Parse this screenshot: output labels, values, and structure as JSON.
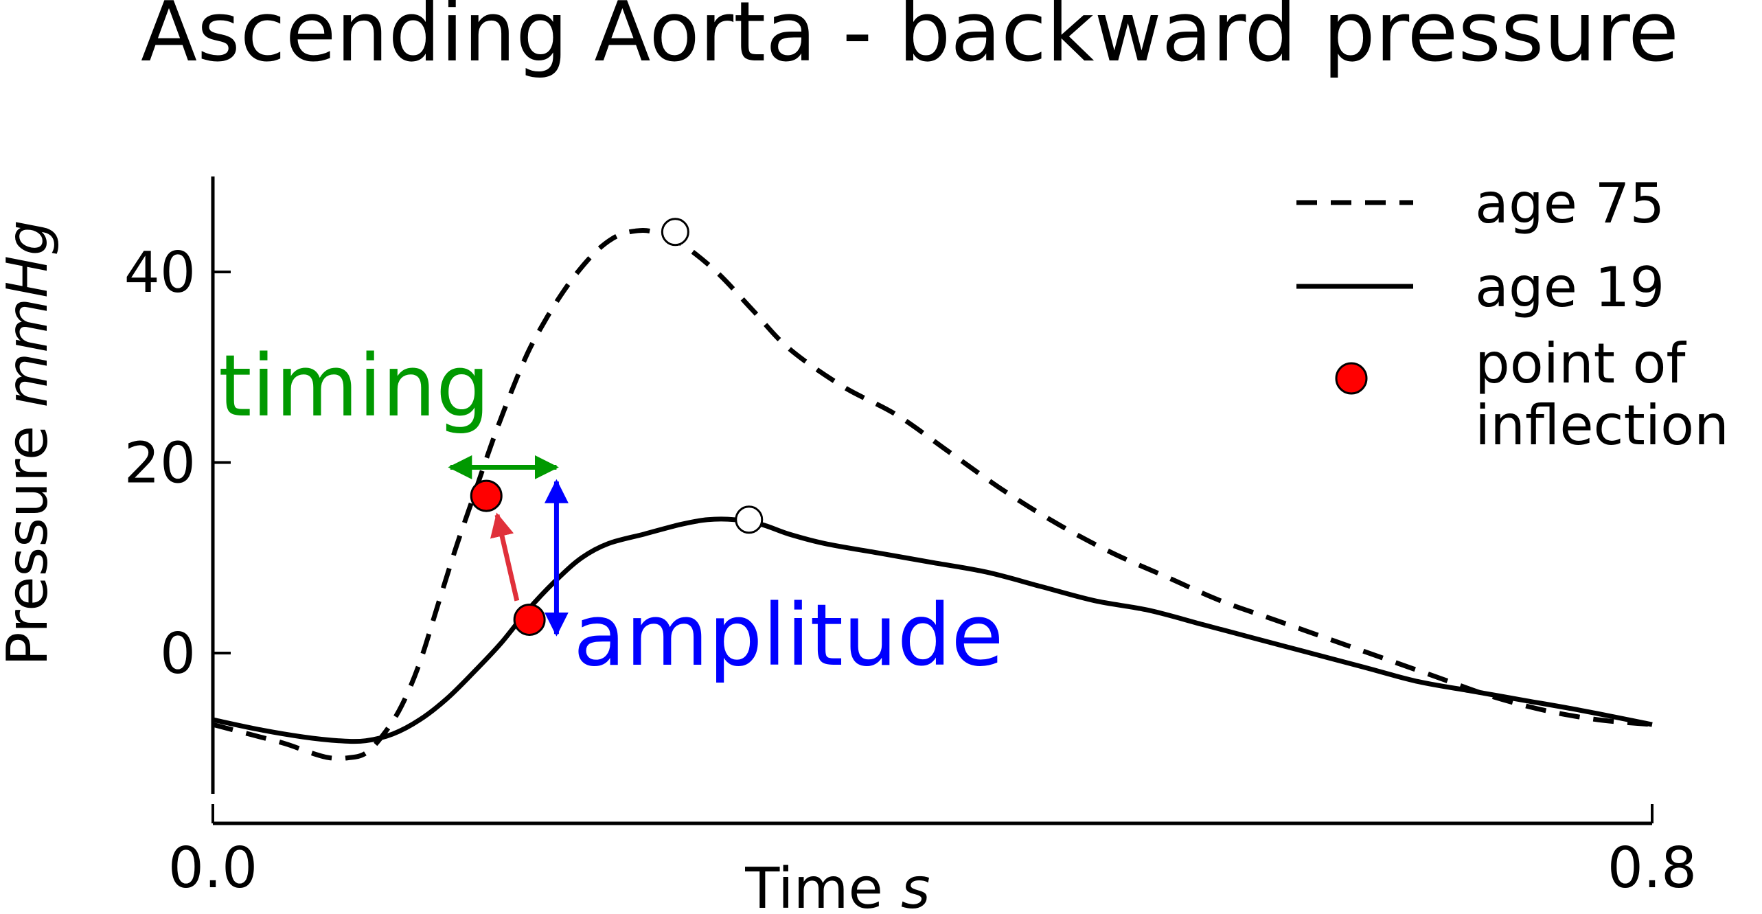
{
  "chart_data": {
    "type": "line",
    "title": "Ascending Aorta - backward pressure",
    "xlabel": {
      "text": "Time ",
      "unit": "s"
    },
    "ylabel": {
      "text": "Pressure ",
      "unit": "mmHg"
    },
    "xlim": [
      0.0,
      0.8
    ],
    "ylim": [
      -15,
      50
    ],
    "xticks": [
      {
        "value": 0.0,
        "label": "0.0"
      },
      {
        "value": 0.8,
        "label": "0.8"
      }
    ],
    "yticks": [
      {
        "value": 0,
        "label": "0"
      },
      {
        "value": 20,
        "label": "20"
      },
      {
        "value": 40,
        "label": "40"
      }
    ],
    "grid": false,
    "legend_position": "top-right",
    "series": [
      {
        "name": "age 75",
        "style": "dashed",
        "color": "#000000",
        "points": [
          [
            0.0,
            -7.5
          ],
          [
            0.02,
            -8.5
          ],
          [
            0.04,
            -9.5
          ],
          [
            0.055,
            -10.5
          ],
          [
            0.065,
            -11.0
          ],
          [
            0.075,
            -11.0
          ],
          [
            0.085,
            -10.5
          ],
          [
            0.095,
            -8.5
          ],
          [
            0.105,
            -5.5
          ],
          [
            0.115,
            -1.0
          ],
          [
            0.125,
            5.0
          ],
          [
            0.135,
            11.0
          ],
          [
            0.145,
            16.5
          ],
          [
            0.155,
            22.0
          ],
          [
            0.165,
            27.0
          ],
          [
            0.175,
            31.5
          ],
          [
            0.185,
            35.0
          ],
          [
            0.195,
            38.0
          ],
          [
            0.205,
            40.5
          ],
          [
            0.215,
            42.5
          ],
          [
            0.225,
            43.8
          ],
          [
            0.235,
            44.3
          ],
          [
            0.245,
            44.2
          ],
          [
            0.26,
            43.0
          ],
          [
            0.28,
            40.0
          ],
          [
            0.3,
            36.0
          ],
          [
            0.32,
            32.0
          ],
          [
            0.35,
            28.0
          ],
          [
            0.38,
            25.0
          ],
          [
            0.41,
            21.0
          ],
          [
            0.44,
            17.0
          ],
          [
            0.47,
            13.5
          ],
          [
            0.5,
            10.5
          ],
          [
            0.53,
            8.0
          ],
          [
            0.56,
            5.5
          ],
          [
            0.59,
            3.5
          ],
          [
            0.62,
            1.5
          ],
          [
            0.65,
            -0.5
          ],
          [
            0.68,
            -2.5
          ],
          [
            0.71,
            -4.5
          ],
          [
            0.74,
            -6.0
          ],
          [
            0.77,
            -7.0
          ],
          [
            0.8,
            -7.5
          ]
        ]
      },
      {
        "name": "age 19",
        "style": "solid",
        "color": "#000000",
        "points": [
          [
            0.0,
            -7.0
          ],
          [
            0.025,
            -8.0
          ],
          [
            0.05,
            -8.8
          ],
          [
            0.07,
            -9.2
          ],
          [
            0.085,
            -9.2
          ],
          [
            0.1,
            -8.5
          ],
          [
            0.115,
            -7.0
          ],
          [
            0.13,
            -4.8
          ],
          [
            0.145,
            -2.0
          ],
          [
            0.16,
            1.0
          ],
          [
            0.175,
            4.5
          ],
          [
            0.19,
            7.5
          ],
          [
            0.205,
            10.0
          ],
          [
            0.22,
            11.5
          ],
          [
            0.24,
            12.5
          ],
          [
            0.26,
            13.5
          ],
          [
            0.275,
            14.0
          ],
          [
            0.29,
            14.0
          ],
          [
            0.305,
            13.5
          ],
          [
            0.32,
            12.5
          ],
          [
            0.34,
            11.5
          ],
          [
            0.37,
            10.5
          ],
          [
            0.4,
            9.5
          ],
          [
            0.43,
            8.5
          ],
          [
            0.46,
            7.0
          ],
          [
            0.49,
            5.5
          ],
          [
            0.52,
            4.5
          ],
          [
            0.55,
            3.0
          ],
          [
            0.58,
            1.5
          ],
          [
            0.61,
            0.0
          ],
          [
            0.64,
            -1.5
          ],
          [
            0.67,
            -3.0
          ],
          [
            0.7,
            -4.0
          ],
          [
            0.73,
            -5.0
          ],
          [
            0.76,
            -6.0
          ],
          [
            0.8,
            -7.5
          ]
        ]
      }
    ],
    "peak_markers": [
      {
        "series": "age 75",
        "x": 0.257,
        "y": 44.2
      },
      {
        "series": "age 19",
        "x": 0.298,
        "y": 14.0
      }
    ],
    "inflection_points": [
      {
        "series": "age 75",
        "x": 0.152,
        "y": 16.5
      },
      {
        "series": "age 19",
        "x": 0.176,
        "y": 3.5
      }
    ],
    "inflection_color": "#ff0000",
    "legend_entries": [
      {
        "label": "age 75",
        "symbol": "dashed-line"
      },
      {
        "label": "age 19",
        "symbol": "solid-line"
      },
      {
        "label_lines": [
          "point of",
          "inflection"
        ],
        "symbol": "red-dot"
      }
    ],
    "annotations": [
      {
        "id": "timing",
        "text": "timing",
        "color": "#009900",
        "arrow": {
          "x1": 0.132,
          "y1": 19.5,
          "x2": 0.191,
          "y2": 19.5,
          "heads": "both"
        }
      },
      {
        "id": "amplitude",
        "text": "amplitude",
        "color": "#0000ff",
        "arrow": {
          "x1": 0.191,
          "y1": 18.0,
          "x2": 0.191,
          "y2": 2.0,
          "heads": "both"
        }
      },
      {
        "id": "shift-arrow",
        "color": "#e0303a",
        "arrow": {
          "x1": 0.169,
          "y1": 5.5,
          "x2": 0.158,
          "y2": 14.5,
          "heads": "end"
        }
      }
    ]
  }
}
